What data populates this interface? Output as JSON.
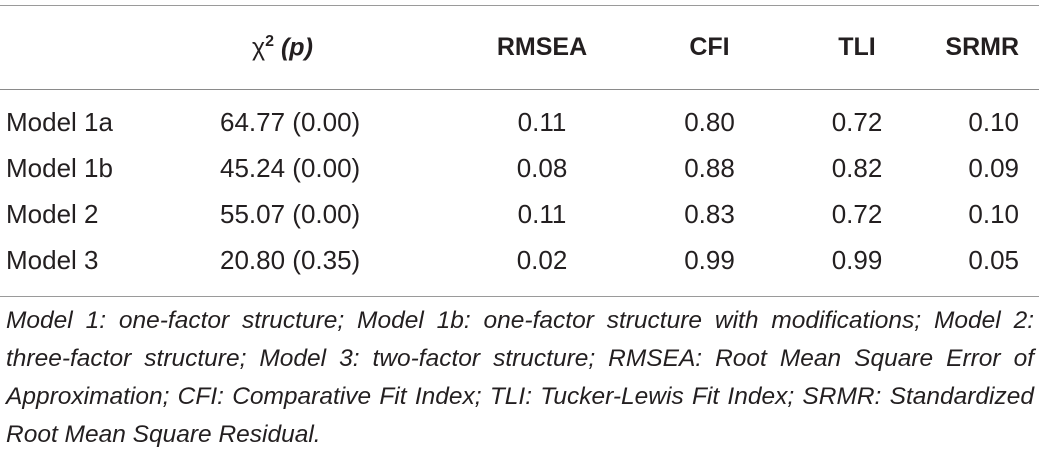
{
  "table": {
    "headers": {
      "model": "",
      "chi_symbol": "χ",
      "chi_sup": "2",
      "chi_p": "(p)",
      "rmsea": "RMSEA",
      "cfi": "CFI",
      "tli": "TLI",
      "srmr": "SRMR"
    },
    "rows": [
      {
        "model": "Model 1a",
        "chi": "64.77 (0.00)",
        "rmsea": "0.11",
        "cfi": "0.80",
        "tli": "0.72",
        "srmr": "0.10"
      },
      {
        "model": "Model 1b",
        "chi": "45.24 (0.00)",
        "rmsea": "0.08",
        "cfi": "0.88",
        "tli": "0.82",
        "srmr": "0.09"
      },
      {
        "model": "Model 2",
        "chi": "55.07 (0.00)",
        "rmsea": "0.11",
        "cfi": "0.83",
        "tli": "0.72",
        "srmr": "0.10"
      },
      {
        "model": "Model 3",
        "chi": "20.80 (0.35)",
        "rmsea": "0.02",
        "cfi": "0.99",
        "tli": "0.99",
        "srmr": "0.05"
      }
    ]
  },
  "footnote": "Model 1: one-factor structure; Model 1b: one-factor structure with modifications; Model 2: three-factor structure; Model 3: two-factor structure; RMSEA: Root Mean Square Error of Approximation; CFI: Comparative Fit Index; TLI: Tucker-Lewis Fit Index; SRMR: Standardized Root Mean Square Residual."
}
